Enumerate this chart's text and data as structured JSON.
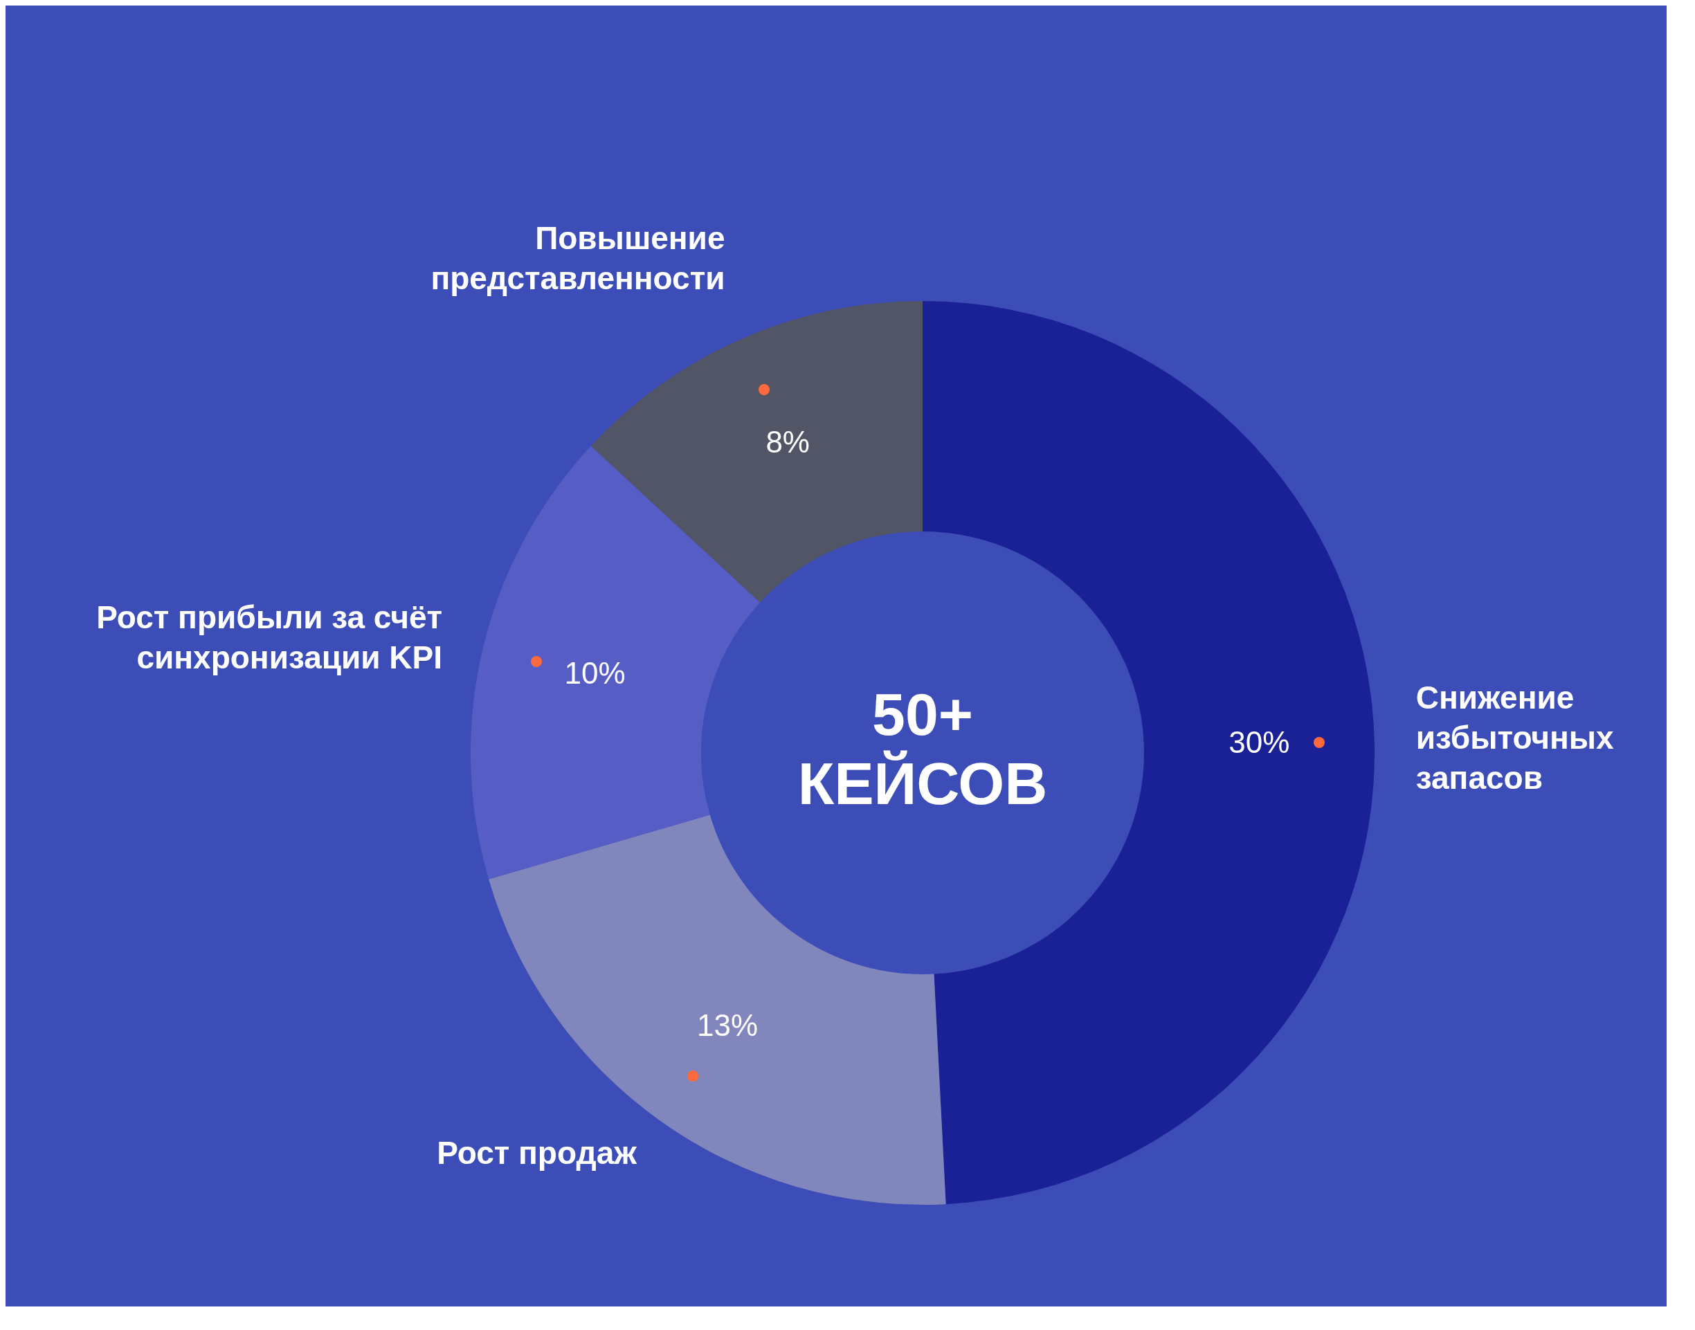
{
  "chart_data": {
    "type": "donut",
    "categories": [
      "Снижение избыточных запасов",
      "Рост продаж",
      "Рост прибыли за счёт синхронизации KPI",
      "Повышение представленности"
    ],
    "values": [
      30,
      13,
      10,
      8
    ],
    "colors": [
      "#1a2096",
      "#8186bd",
      "#565ec6",
      "#525566"
    ],
    "value_labels": [
      "30%",
      "13%",
      "10%",
      "8%"
    ],
    "annotations": [
      "50+ КЕЙСОВ"
    ],
    "legend": false
  }
}
